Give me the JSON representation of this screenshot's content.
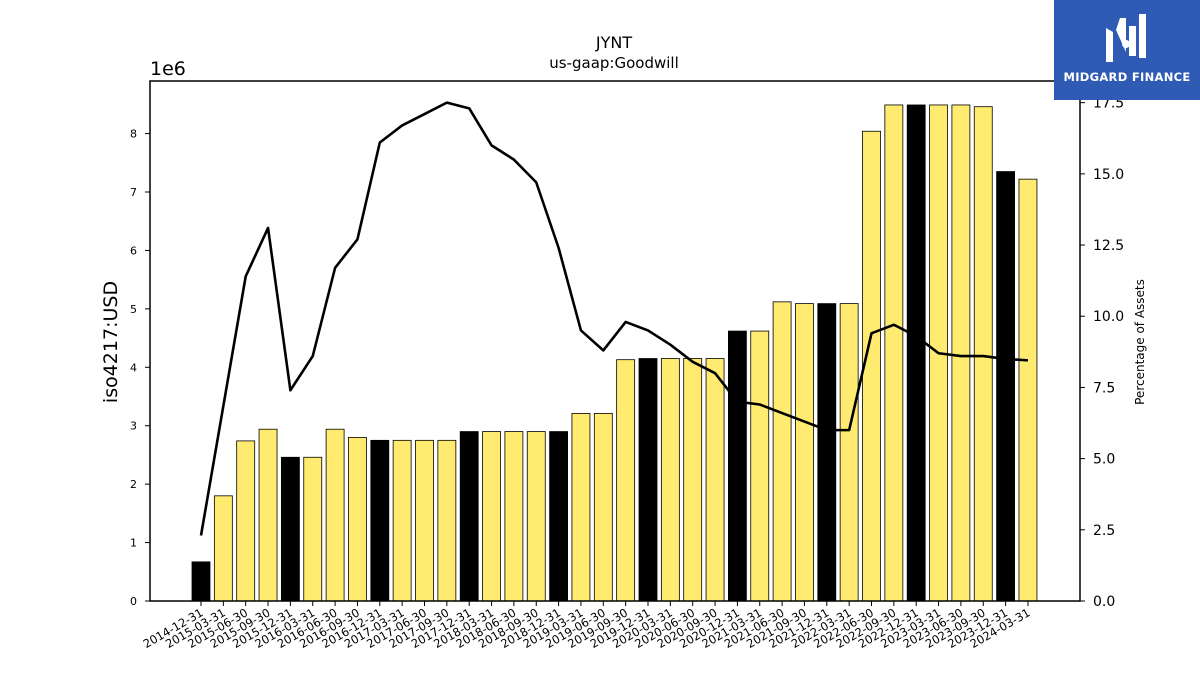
{
  "chart_data": {
    "type": "bar",
    "title": "JYNT",
    "subtitle": "us-gaap:Goodwill",
    "ylabel": "iso4217:USD",
    "y2label": "Percentage of Assets",
    "y_offset_label": "1e6",
    "ylim": [
      0,
      8.9
    ],
    "y2lim": [
      0,
      18.26
    ],
    "y_ticks": [
      "0",
      "1",
      "2",
      "3",
      "4",
      "5",
      "6",
      "7",
      "8"
    ],
    "y2_ticks": [
      "0.0",
      "2.5",
      "5.0",
      "7.5",
      "10.0",
      "12.5",
      "15.0",
      "17.5"
    ],
    "categories": [
      "2014-12-31",
      "2015-03-31",
      "2015-06-30",
      "2015-09-30",
      "2015-12-31",
      "2016-03-31",
      "2016-06-30",
      "2016-09-30",
      "2016-12-31",
      "2017-03-31",
      "2017-06-30",
      "2017-09-30",
      "2017-12-31",
      "2018-03-31",
      "2018-06-30",
      "2018-09-30",
      "2018-12-31",
      "2019-03-31",
      "2019-06-30",
      "2019-09-30",
      "2019-12-31",
      "2020-03-31",
      "2020-06-30",
      "2020-09-30",
      "2020-12-31",
      "2021-03-31",
      "2021-06-30",
      "2021-09-30",
      "2021-12-31",
      "2022-03-31",
      "2022-06-30",
      "2022-09-30",
      "2022-12-31",
      "2023-03-31",
      "2023-06-30",
      "2023-09-30",
      "2023-12-31",
      "2024-03-31"
    ],
    "series": [
      {
        "name": "",
        "kind": "bar",
        "values": [
          0.67,
          1.8,
          2.74,
          2.94,
          2.46,
          2.46,
          2.94,
          2.8,
          2.75,
          2.75,
          2.75,
          2.75,
          2.9,
          2.9,
          2.9,
          2.9,
          2.9,
          3.21,
          3.21,
          4.13,
          4.15,
          4.15,
          4.15,
          4.15,
          4.62,
          4.62,
          5.12,
          5.09,
          5.09,
          5.09,
          8.04,
          8.49,
          8.49,
          8.49,
          8.49,
          8.46,
          7.35,
          7.22
        ],
        "highlight": [
          true,
          false,
          false,
          false,
          true,
          false,
          false,
          false,
          true,
          false,
          false,
          false,
          true,
          false,
          false,
          false,
          true,
          false,
          false,
          false,
          true,
          false,
          false,
          false,
          true,
          false,
          false,
          false,
          true,
          false,
          false,
          false,
          true,
          false,
          false,
          false,
          true,
          false
        ]
      },
      {
        "name": "",
        "kind": "line",
        "axis": "right",
        "values": [
          2.3,
          null,
          11.4,
          13.1,
          7.4,
          8.6,
          11.7,
          12.7,
          16.1,
          16.7,
          17.1,
          17.5,
          17.3,
          16.0,
          15.5,
          14.7,
          12.4,
          9.5,
          8.8,
          9.8,
          9.5,
          9.0,
          8.4,
          8.0,
          7.0,
          6.9,
          6.6,
          6.3,
          6.0,
          6.0,
          9.4,
          9.7,
          9.3,
          8.7,
          8.6,
          8.6,
          8.5,
          8.45
        ]
      }
    ],
    "colors": {
      "bar": "#ffeb70",
      "bar_highlight": "#000000",
      "line": "#000000"
    },
    "grid": false,
    "legend": "none"
  },
  "logo": {
    "text": "MIDGARD FINANCE"
  }
}
